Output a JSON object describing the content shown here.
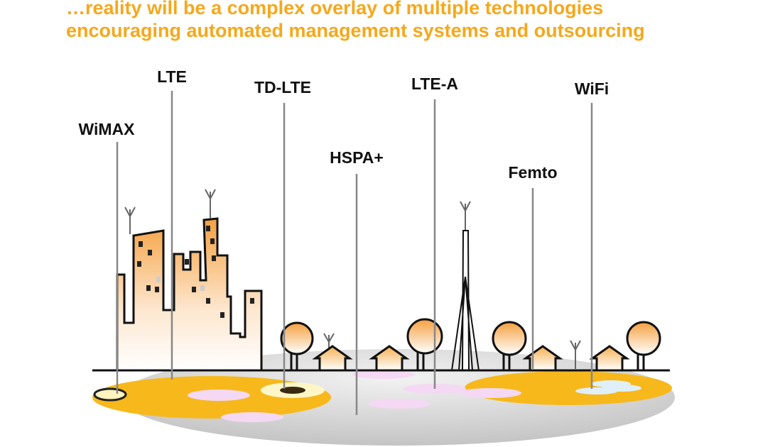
{
  "title": {
    "line1": "…reality will be a complex overlay of multiple technologies",
    "line2": "encouraging automated management systems and outsourcing"
  },
  "labels": [
    "WiMAX",
    "LTE",
    "TD-LTE",
    "HSPA+",
    "LTE-A",
    "Femto",
    "WiFi"
  ]
}
